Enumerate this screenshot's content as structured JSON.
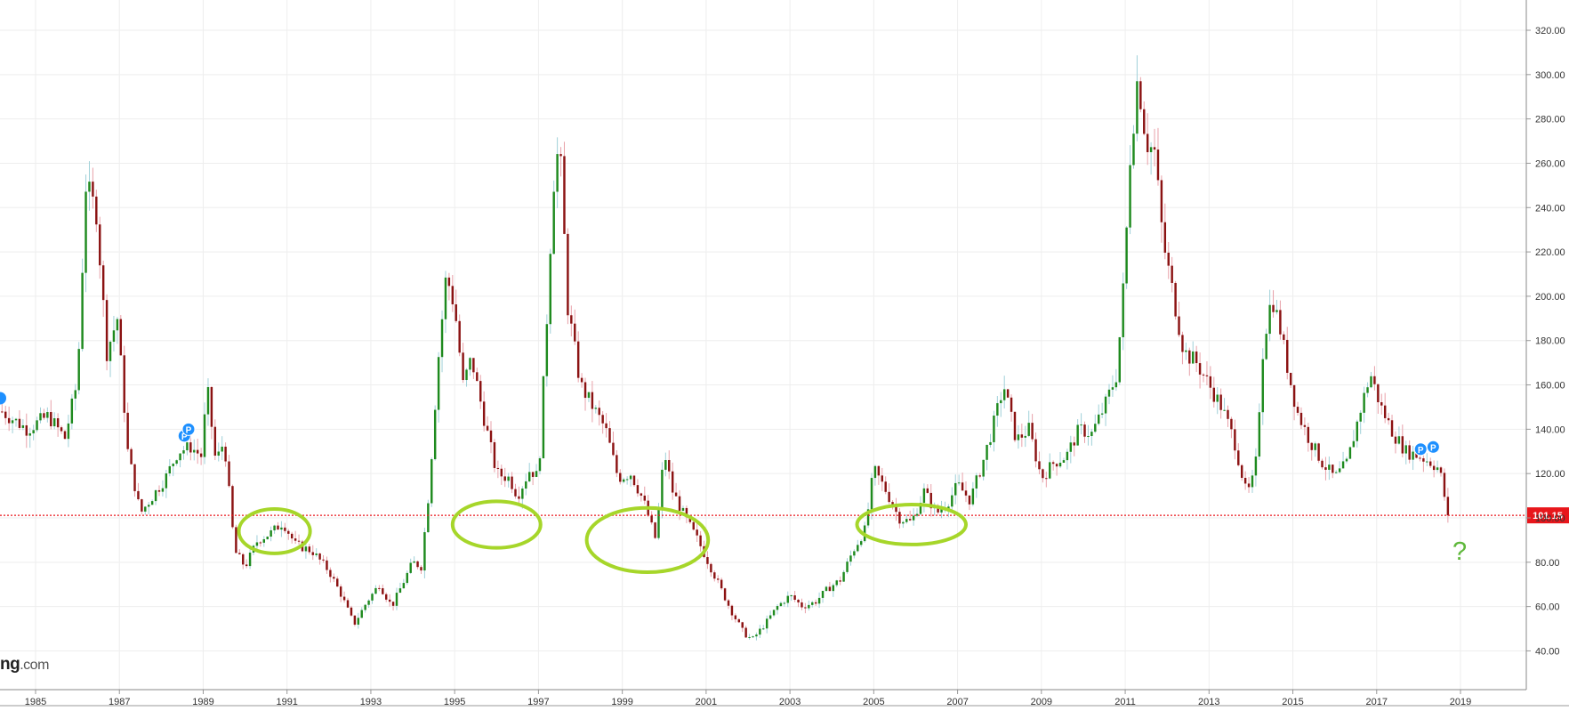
{
  "watermark": {
    "text": "ng",
    "suffix": ".com"
  },
  "annotation_question": "?",
  "price_badge": "101.15",
  "colors": {
    "up": "#1e8a1e",
    "down": "#8b1212",
    "wick_up": "#9fd0d8",
    "wick_down": "#e8a0a8",
    "price_line": "#e8161b",
    "ellipse": "#a6d62a",
    "marker": "#1e90ff",
    "grid": "#eeeeee",
    "badge_bg": "#e8161b"
  },
  "markers": [
    {
      "label": "P",
      "date": 1988.55,
      "value": 137
    },
    {
      "label": "P",
      "date": 1988.65,
      "value": 140
    },
    {
      "label": "P",
      "date": 2018.05,
      "value": 131
    },
    {
      "label": "P",
      "date": 2018.35,
      "value": 132
    }
  ],
  "ellipses": [
    {
      "date": 1990.7,
      "value": 94,
      "span_years": 1.7,
      "span_value": 20
    },
    {
      "date": 1996.0,
      "value": 97,
      "span_years": 2.1,
      "span_value": 21
    },
    {
      "date": 1999.6,
      "value": 90,
      "span_years": 2.9,
      "span_value": 29
    },
    {
      "date": 2005.9,
      "value": 97,
      "span_years": 2.6,
      "span_value": 18
    }
  ],
  "chart_data": {
    "type": "candlestick",
    "frequency": "monthly",
    "y_axis_position": "right",
    "ylim": [
      33,
      325
    ],
    "xlim": [
      1984.2,
      2020.5
    ],
    "y_ticks": [
      "40.00",
      "60.00",
      "80.00",
      "100.00",
      "120.00",
      "140.00",
      "160.00",
      "180.00",
      "200.00",
      "220.00",
      "240.00",
      "260.00",
      "280.00",
      "300.00",
      "320.00"
    ],
    "x_ticks": [
      "1985",
      "1987",
      "1989",
      "1991",
      "1993",
      "1995",
      "1997",
      "1999",
      "2001",
      "2003",
      "2005",
      "2007",
      "2009",
      "2011",
      "2013",
      "2015",
      "2017",
      "2019"
    ],
    "last_price": 101.15,
    "grid": true,
    "close_anchors": [
      [
        1984.2,
        148
      ],
      [
        1984.8,
        140
      ],
      [
        1985.3,
        146
      ],
      [
        1985.7,
        136
      ],
      [
        1986.0,
        162
      ],
      [
        1986.2,
        250
      ],
      [
        1986.45,
        238
      ],
      [
        1986.7,
        175
      ],
      [
        1986.95,
        190
      ],
      [
        1987.2,
        130
      ],
      [
        1987.5,
        102
      ],
      [
        1987.8,
        110
      ],
      [
        1988.1,
        118
      ],
      [
        1988.4,
        130
      ],
      [
        1988.7,
        132
      ],
      [
        1988.95,
        128
      ],
      [
        1989.1,
        158
      ],
      [
        1989.3,
        125
      ],
      [
        1989.5,
        135
      ],
      [
        1989.75,
        85
      ],
      [
        1990.0,
        78
      ],
      [
        1990.3,
        90
      ],
      [
        1990.6,
        93
      ],
      [
        1990.9,
        98
      ],
      [
        1991.2,
        88
      ],
      [
        1991.6,
        85
      ],
      [
        1992.0,
        76
      ],
      [
        1992.3,
        65
      ],
      [
        1992.6,
        52
      ],
      [
        1992.9,
        62
      ],
      [
        1993.2,
        70
      ],
      [
        1993.5,
        60
      ],
      [
        1993.8,
        72
      ],
      [
        1994.0,
        80
      ],
      [
        1994.2,
        78
      ],
      [
        1994.4,
        115
      ],
      [
        1994.6,
        170
      ],
      [
        1994.8,
        210
      ],
      [
        1995.0,
        195
      ],
      [
        1995.2,
        160
      ],
      [
        1995.4,
        172
      ],
      [
        1995.7,
        145
      ],
      [
        1996.0,
        120
      ],
      [
        1996.3,
        118
      ],
      [
        1996.5,
        110
      ],
      [
        1996.8,
        122
      ],
      [
        1997.0,
        118
      ],
      [
        1997.2,
        190
      ],
      [
        1997.35,
        250
      ],
      [
        1997.5,
        270
      ],
      [
        1997.7,
        195
      ],
      [
        1998.0,
        160
      ],
      [
        1998.3,
        150
      ],
      [
        1998.6,
        140
      ],
      [
        1998.9,
        118
      ],
      [
        1999.2,
        120
      ],
      [
        1999.5,
        108
      ],
      [
        1999.8,
        90
      ],
      [
        2000.0,
        130
      ],
      [
        2000.2,
        112
      ],
      [
        2000.5,
        100
      ],
      [
        2000.8,
        90
      ],
      [
        2001.0,
        82
      ],
      [
        2001.3,
        70
      ],
      [
        2001.6,
        58
      ],
      [
        2001.9,
        48
      ],
      [
        2002.1,
        45
      ],
      [
        2002.4,
        52
      ],
      [
        2002.7,
        60
      ],
      [
        2003.0,
        65
      ],
      [
        2003.3,
        60
      ],
      [
        2003.6,
        62
      ],
      [
        2003.9,
        68
      ],
      [
        2004.2,
        72
      ],
      [
        2004.5,
        85
      ],
      [
        2004.8,
        95
      ],
      [
        2005.0,
        122
      ],
      [
        2005.3,
        112
      ],
      [
        2005.6,
        100
      ],
      [
        2005.9,
        98
      ],
      [
        2006.2,
        112
      ],
      [
        2006.5,
        102
      ],
      [
        2006.8,
        108
      ],
      [
        2007.0,
        115
      ],
      [
        2007.3,
        108
      ],
      [
        2007.6,
        125
      ],
      [
        2007.9,
        145
      ],
      [
        2008.1,
        160
      ],
      [
        2008.4,
        135
      ],
      [
        2008.7,
        140
      ],
      [
        2009.0,
        118
      ],
      [
        2009.3,
        125
      ],
      [
        2009.6,
        128
      ],
      [
        2009.9,
        140
      ],
      [
        2010.2,
        138
      ],
      [
        2010.5,
        150
      ],
      [
        2010.8,
        165
      ],
      [
        2011.0,
        215
      ],
      [
        2011.1,
        260
      ],
      [
        2011.3,
        300
      ],
      [
        2011.5,
        270
      ],
      [
        2011.7,
        265
      ],
      [
        2011.9,
        225
      ],
      [
        2012.1,
        205
      ],
      [
        2012.4,
        175
      ],
      [
        2012.7,
        170
      ],
      [
        2013.0,
        160
      ],
      [
        2013.3,
        150
      ],
      [
        2013.6,
        135
      ],
      [
        2013.9,
        110
      ],
      [
        2014.1,
        120
      ],
      [
        2014.3,
        180
      ],
      [
        2014.5,
        200
      ],
      [
        2014.7,
        185
      ],
      [
        2014.9,
        165
      ],
      [
        2015.1,
        148
      ],
      [
        2015.4,
        135
      ],
      [
        2015.7,
        125
      ],
      [
        2016.0,
        118
      ],
      [
        2016.3,
        125
      ],
      [
        2016.6,
        148
      ],
      [
        2016.85,
        165
      ],
      [
        2017.1,
        150
      ],
      [
        2017.4,
        138
      ],
      [
        2017.7,
        130
      ],
      [
        2018.0,
        128
      ],
      [
        2018.3,
        125
      ],
      [
        2018.5,
        122
      ],
      [
        2018.7,
        101.15
      ]
    ],
    "series": [
      {
        "close_anchors": "close_anchors"
      }
    ]
  }
}
